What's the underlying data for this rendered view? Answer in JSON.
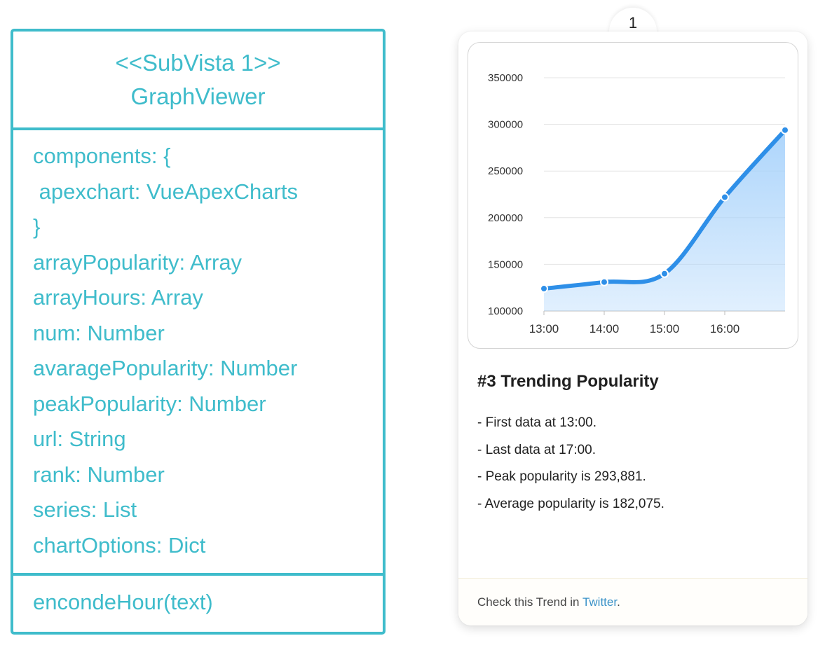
{
  "uml": {
    "stereotype": "<<SubVista 1>>",
    "class_name": "GraphViewer",
    "attributes": [
      "components: {",
      " apexchart: VueApexCharts",
      "}",
      "arrayPopularity: Array",
      "arrayHours: Array",
      "num: Number",
      "avaragePopularity: Number",
      "peakPopularity: Number",
      "url: String",
      "rank: Number",
      "series: List",
      "chartOptions: Dict"
    ],
    "methods": [
      "encondeHour(text)"
    ],
    "color": "#3fbccb"
  },
  "card": {
    "tab_label": "1",
    "title": "#3 Trending Popularity",
    "lines": [
      "- First data at 13:00.",
      "- Last data at 17:00.",
      "- Peak popularity is 293,881.",
      "- Average popularity is 182,075."
    ],
    "footer_prefix": "Check this Trend in ",
    "footer_link": "Twitter",
    "footer_suffix": "."
  },
  "chart_data": {
    "type": "area",
    "categories": [
      "13:00",
      "14:00",
      "15:00",
      "16:00",
      "17:00"
    ],
    "x_tick_labels": [
      "13:00",
      "14:00",
      "15:00",
      "16:00"
    ],
    "values": [
      124000,
      131000,
      140000,
      222000,
      293881
    ],
    "y_ticks": [
      350000,
      300000,
      250000,
      200000,
      150000,
      100000
    ],
    "ylim": [
      100000,
      350000
    ],
    "grid": true,
    "line_color": "#2e8fe8",
    "fill_color": "#a9d3fb"
  }
}
